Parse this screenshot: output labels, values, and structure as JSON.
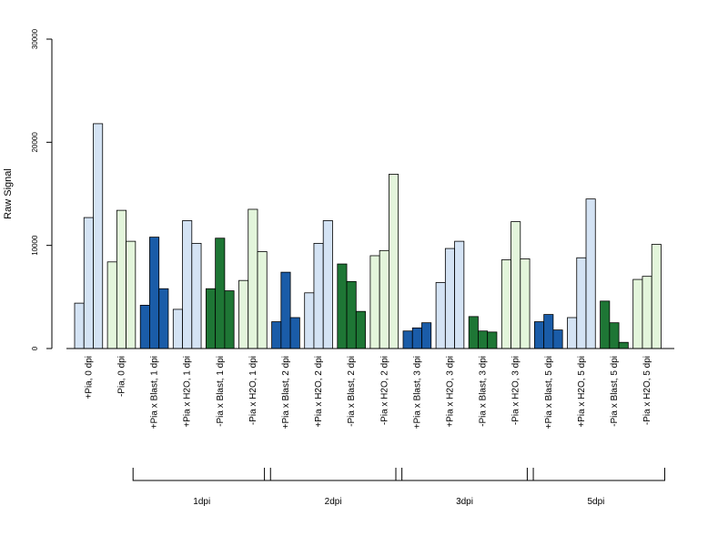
{
  "chart_data": {
    "type": "bar",
    "ylabel": "Raw Signal",
    "xlabel": "",
    "ylim": [
      0,
      30000
    ],
    "yticks": [
      0,
      10000,
      20000,
      30000
    ],
    "ytick_labels": [
      "0",
      "10000",
      "20000",
      "30000"
    ],
    "grid": false,
    "colors": {
      "light_blue": "#d4e3f4",
      "light_green": "#e3f5db",
      "dark_blue": "#1a5ca8",
      "dark_green": "#1e7635"
    },
    "categories": [
      {
        "label": "+Pia, 0 dpi",
        "color": "light_blue",
        "values": [
          4400,
          12700,
          21800
        ]
      },
      {
        "label": "-Pia, 0 dpi",
        "color": "light_green",
        "values": [
          8400,
          13400,
          10400
        ]
      },
      {
        "label": "+Pia x Blast, 1 dpi",
        "color": "dark_blue",
        "values": [
          4200,
          10800,
          5800
        ]
      },
      {
        "label": "+Pia x H2O, 1 dpi",
        "color": "light_blue",
        "values": [
          3800,
          12400,
          10200
        ]
      },
      {
        "label": "-Pia x Blast, 1 dpi",
        "color": "dark_green",
        "values": [
          5800,
          10700,
          5600
        ]
      },
      {
        "label": "-Pia x H2O, 1 dpi",
        "color": "light_green",
        "values": [
          6600,
          13500,
          9400
        ]
      },
      {
        "label": "+Pia x Blast, 2 dpi",
        "color": "dark_blue",
        "values": [
          2600,
          7400,
          3000
        ]
      },
      {
        "label": "+Pia x H2O, 2 dpi",
        "color": "light_blue",
        "values": [
          5400,
          10200,
          12400
        ]
      },
      {
        "label": "-Pia x Blast, 2 dpi",
        "color": "dark_green",
        "values": [
          8200,
          6500,
          3600
        ]
      },
      {
        "label": "-Pia x H2O, 2 dpi",
        "color": "light_green",
        "values": [
          9000,
          9500,
          16900
        ]
      },
      {
        "label": "+Pia x Blast, 3 dpi",
        "color": "dark_blue",
        "values": [
          1700,
          2000,
          2500
        ]
      },
      {
        "label": "+Pia x H2O, 3 dpi",
        "color": "light_blue",
        "values": [
          6400,
          9700,
          10400
        ]
      },
      {
        "label": "-Pia x Blast, 3 dpi",
        "color": "dark_green",
        "values": [
          3100,
          1700,
          1600
        ]
      },
      {
        "label": "-Pia x H2O, 3 dpi",
        "color": "light_green",
        "values": [
          8600,
          12300,
          8700
        ]
      },
      {
        "label": "+Pia x Blast, 5 dpi",
        "color": "dark_blue",
        "values": [
          2600,
          3300,
          1800
        ]
      },
      {
        "label": "+Pia x H2O, 5 dpi",
        "color": "light_blue",
        "values": [
          3000,
          8800,
          14500
        ]
      },
      {
        "label": "-Pia x Blast, 5 dpi",
        "color": "dark_green",
        "values": [
          4600,
          2500,
          600
        ]
      },
      {
        "label": "-Pia x H2O, 5 dpi",
        "color": "light_green",
        "values": [
          6700,
          7000,
          10100
        ]
      }
    ],
    "groups": [
      {
        "label": "1dpi",
        "first": 2,
        "last": 5
      },
      {
        "label": "2dpi",
        "first": 6,
        "last": 9
      },
      {
        "label": "3dpi",
        "first": 10,
        "last": 13
      },
      {
        "label": "5dpi",
        "first": 14,
        "last": 17
      }
    ]
  }
}
